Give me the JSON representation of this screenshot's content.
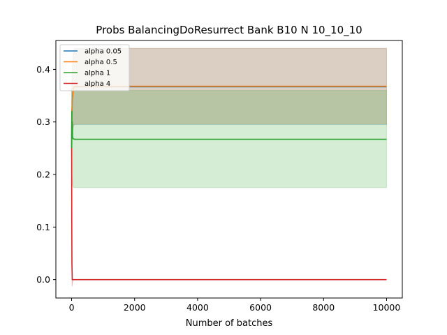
{
  "chart_data": {
    "type": "line",
    "title": "Probs BalancingDoResurrect Bank B10 N 10_10_10",
    "xlabel": "Number of batches",
    "ylabel": "",
    "xlim": [
      -500,
      10500
    ],
    "ylim": [
      -0.035,
      0.455
    ],
    "xticks": [
      0,
      2000,
      4000,
      6000,
      8000,
      10000
    ],
    "yticks": [
      0.0,
      0.1,
      0.2,
      0.3,
      0.4
    ],
    "ytick_labels": [
      "0.0",
      "0.1",
      "0.2",
      "0.3",
      "0.4"
    ],
    "grid": false,
    "legend_position": "top-left",
    "series": [
      {
        "name": "alpha 0.05",
        "color": "#1f77b4",
        "band_color": "#1f77b4",
        "x": [
          0,
          5,
          20,
          40,
          60,
          100,
          10000
        ],
        "y": [
          0.25,
          0.3,
          0.34,
          0.355,
          0.365,
          0.367,
          0.367
        ],
        "band_lower": [
          0.2,
          0.23,
          0.27,
          0.285,
          0.293,
          0.295,
          0.295
        ],
        "band_upper": [
          0.3,
          0.36,
          0.4,
          0.42,
          0.435,
          0.44,
          0.44
        ]
      },
      {
        "name": "alpha 0.5",
        "color": "#ff7f0e",
        "band_color": "#ff7f0e",
        "x": [
          0,
          5,
          20,
          40,
          60,
          100,
          10000
        ],
        "y": [
          0.25,
          0.31,
          0.34,
          0.356,
          0.366,
          0.368,
          0.368
        ],
        "band_lower": [
          0.2,
          0.235,
          0.272,
          0.287,
          0.294,
          0.296,
          0.296
        ],
        "band_upper": [
          0.3,
          0.365,
          0.405,
          0.425,
          0.436,
          0.44,
          0.44
        ]
      },
      {
        "name": "alpha 1",
        "color": "#2ca02c",
        "band_color": "#2ca02c",
        "x": [
          0,
          5,
          10,
          20,
          30,
          50,
          100,
          10000
        ],
        "y": [
          0.25,
          0.32,
          0.28,
          0.3,
          0.27,
          0.268,
          0.267,
          0.267
        ],
        "band_lower": [
          0.2,
          0.25,
          0.2,
          0.19,
          0.18,
          0.176,
          0.175,
          0.175
        ],
        "band_upper": [
          0.3,
          0.38,
          0.36,
          0.36,
          0.36,
          0.36,
          0.36,
          0.36
        ]
      },
      {
        "name": "alpha 4",
        "color": "#d62728",
        "band_color": "#d62728",
        "x": [
          0,
          2,
          5,
          10,
          20,
          30,
          50,
          10000
        ],
        "y": [
          0.25,
          0.22,
          0.12,
          0.03,
          0.0,
          0.0,
          0.0,
          0.0
        ],
        "band_lower": [
          0.2,
          0.15,
          0.05,
          -0.01,
          -0.013,
          -0.005,
          0.0,
          0.0
        ],
        "band_upper": [
          0.3,
          0.26,
          0.2,
          0.08,
          0.02,
          0.0,
          0.0,
          0.0
        ]
      }
    ]
  }
}
